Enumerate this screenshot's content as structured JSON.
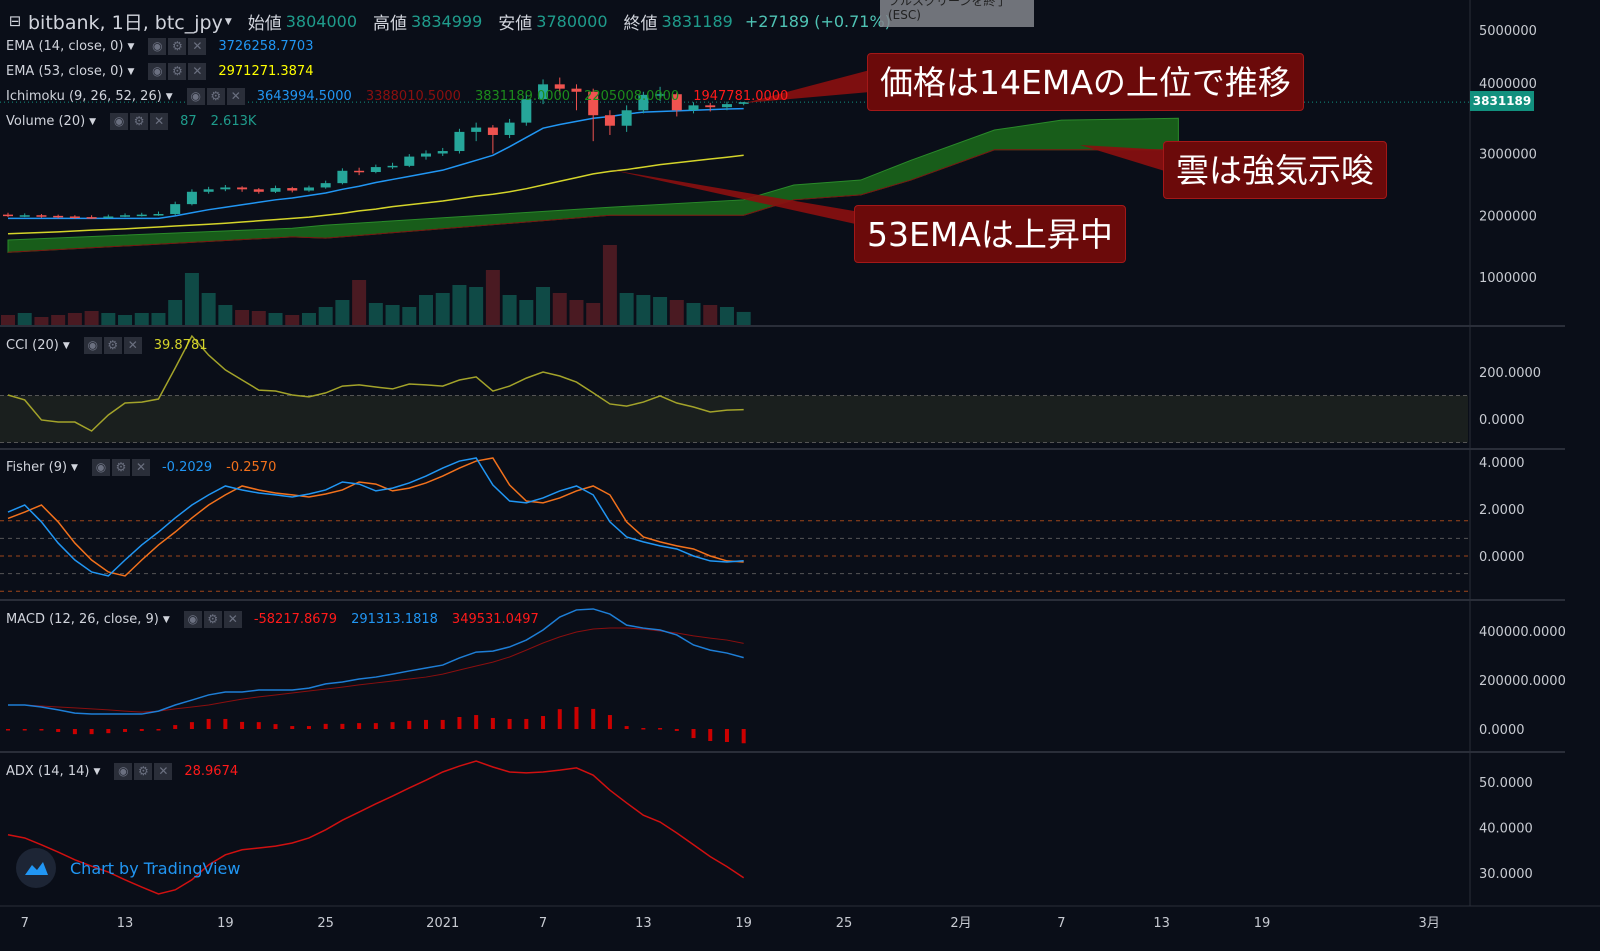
{
  "header": {
    "symbol": "bitbank, 1日, btc_jpy",
    "open_label": "始値",
    "open": "3804000",
    "high_label": "高値",
    "high": "3834999",
    "low_label": "安値",
    "low": "3780000",
    "close_label": "終値",
    "close": "3831189",
    "change": "+27189 (+0.71%)"
  },
  "tooltip": {
    "line1": "フルスクリーンを終了",
    "line2": "(ESC)"
  },
  "legends": {
    "ema14": {
      "name": "EMA (14, close, 0)",
      "value": "3726258.7703"
    },
    "ema53": {
      "name": "EMA (53, close, 0)",
      "value": "2971271.3874"
    },
    "ichimoku": {
      "name": "Ichimoku (9, 26, 52, 26)",
      "v1": "3643994.5000",
      "v2": "3388010.5000",
      "v3": "3831189.0000",
      "v4": "2205008.0000",
      "v5": "1947781.0000"
    },
    "volume": {
      "name": "Volume (20)",
      "v1": "87",
      "v2": "2.613K"
    },
    "cci": {
      "name": "CCI (20)",
      "value": "39.8781"
    },
    "fisher": {
      "name": "Fisher (9)",
      "v1": "-0.2029",
      "v2": "-0.2570"
    },
    "macd": {
      "name": "MACD (12, 26, close, 9)",
      "v1": "-58217.8679",
      "v2": "291313.1818",
      "v3": "349531.0497"
    },
    "adx": {
      "name": "ADX (14, 14)",
      "value": "28.9674"
    }
  },
  "price_tag": "3831189",
  "annotations": [
    {
      "text": "価格は14EMAの上位で推移"
    },
    {
      "text": "雲は強気示唆"
    },
    {
      "text": "53EMAは上昇中"
    }
  ],
  "branding": {
    "text": "Chart by TradingView"
  },
  "colors": {
    "up": "#26a69a",
    "down": "#ef5350",
    "ema14": "#2196f3",
    "ema53": "#d4d42a",
    "cloud": "#1b6b1b",
    "cci": "#a3a32a",
    "fisher": "#2196f3",
    "trigger": "#f2711c",
    "macd": "#1e7ed6",
    "signal": "#8b0f0f",
    "hist": "#cc0000",
    "adx": "#d01010",
    "background": "#0a0e18"
  },
  "chart_data": [
    {
      "type": "candlestick",
      "first_date": "2020-12-06",
      "interval": "1日",
      "ylim": [
        0,
        5000000
      ],
      "yticks": [
        "5000000",
        "4000000",
        "3000000",
        "2000000",
        "1000000"
      ],
      "xticks": [
        {
          "date": "2020-12-07",
          "label": "7"
        },
        {
          "date": "2020-12-13",
          "label": "13"
        },
        {
          "date": "2020-12-19",
          "label": "19"
        },
        {
          "date": "2020-12-25",
          "label": "25"
        },
        {
          "date": "2021-01-01",
          "label": "2021"
        },
        {
          "date": "2021-01-07",
          "label": "7"
        },
        {
          "date": "2021-01-13",
          "label": "13"
        },
        {
          "date": "2021-01-19",
          "label": "19"
        },
        {
          "date": "2021-01-25",
          "label": "25"
        },
        {
          "date": "2021-02-01",
          "label": "2月"
        },
        {
          "date": "2021-02-07",
          "label": "7"
        },
        {
          "date": "2021-02-13",
          "label": "13"
        },
        {
          "date": "2021-02-19",
          "label": "19"
        },
        {
          "date": "2021-03-01",
          "label": "3月"
        }
      ],
      "open": [
        2010000,
        2000000,
        2000000,
        1990000,
        1980000,
        1970000,
        1960000,
        1980000,
        2000000,
        2010000,
        2020000,
        2180000,
        2380000,
        2420000,
        2450000,
        2420000,
        2380000,
        2440000,
        2400000,
        2450000,
        2520000,
        2720000,
        2700000,
        2780000,
        2800000,
        2950000,
        3000000,
        3040000,
        3350000,
        3420000,
        3300000,
        3500000,
        3880000,
        4120000,
        4050000,
        4000000,
        3620000,
        3450000,
        3700000,
        3950000,
        3960000,
        3700000,
        3780000,
        3750000,
        3804000
      ],
      "high": [
        2040000,
        2030000,
        2020000,
        2010000,
        2000000,
        2000000,
        2010000,
        2030000,
        2040000,
        2060000,
        2220000,
        2420000,
        2460000,
        2490000,
        2470000,
        2440000,
        2480000,
        2460000,
        2480000,
        2560000,
        2760000,
        2770000,
        2820000,
        2850000,
        2990000,
        3050000,
        3090000,
        3400000,
        3500000,
        3460000,
        3560000,
        3960000,
        4200000,
        4230000,
        4120000,
        4050000,
        3700000,
        3780000,
        4000000,
        4080000,
        3990000,
        3830000,
        3820000,
        3840000,
        3834999
      ],
      "low": [
        1970000,
        1970000,
        1960000,
        1950000,
        1940000,
        1940000,
        1950000,
        1970000,
        1980000,
        1990000,
        2000000,
        2160000,
        2350000,
        2390000,
        2380000,
        2350000,
        2360000,
        2370000,
        2380000,
        2430000,
        2500000,
        2650000,
        2680000,
        2750000,
        2780000,
        2900000,
        2960000,
        3000000,
        3200000,
        3000000,
        3250000,
        3450000,
        3800000,
        3950000,
        3700000,
        3200000,
        3300000,
        3350000,
        3650000,
        3850000,
        3600000,
        3650000,
        3680000,
        3700000,
        3780000
      ],
      "close": [
        2000000,
        2000000,
        1990000,
        1980000,
        1970000,
        1960000,
        1980000,
        2000000,
        2010000,
        2020000,
        2180000,
        2380000,
        2420000,
        2450000,
        2420000,
        2380000,
        2440000,
        2400000,
        2450000,
        2520000,
        2720000,
        2700000,
        2780000,
        2800000,
        2950000,
        3000000,
        3040000,
        3350000,
        3420000,
        3300000,
        3500000,
        3880000,
        4120000,
        4050000,
        4000000,
        3620000,
        3450000,
        3700000,
        3950000,
        3960000,
        3700000,
        3780000,
        3750000,
        3800000,
        3831189
      ],
      "ema14": [
        1950000,
        1950000,
        1950000,
        1950000,
        1950000,
        1950000,
        1950000,
        1950000,
        1950000,
        1950000,
        1990000,
        2040000,
        2090000,
        2130000,
        2170000,
        2210000,
        2250000,
        2280000,
        2320000,
        2360000,
        2420000,
        2470000,
        2530000,
        2580000,
        2630000,
        2680000,
        2730000,
        2810000,
        2890000,
        2970000,
        3110000,
        3260000,
        3410000,
        3470000,
        3520000,
        3570000,
        3600000,
        3640000,
        3670000,
        3680000,
        3690000,
        3700000,
        3710000,
        3720000,
        3726258
      ],
      "ema53": [
        1700000,
        1710000,
        1720000,
        1730000,
        1745000,
        1760000,
        1770000,
        1780000,
        1795000,
        1810000,
        1825000,
        1840000,
        1855000,
        1870000,
        1890000,
        1910000,
        1930000,
        1950000,
        1970000,
        2000000,
        2030000,
        2070000,
        2100000,
        2140000,
        2170000,
        2200000,
        2230000,
        2270000,
        2310000,
        2340000,
        2380000,
        2430000,
        2490000,
        2550000,
        2610000,
        2670000,
        2710000,
        2740000,
        2780000,
        2820000,
        2850000,
        2880000,
        2910000,
        2940000,
        2971271
      ],
      "ichimoku_cloud": [
        [
          "2020-12-06",
          1600000,
          1400000
        ],
        [
          "2020-12-23",
          1790000,
          1650000
        ],
        [
          "2020-12-25",
          1840000,
          1630000
        ],
        [
          "2021-01-11",
          2130000,
          2000000
        ],
        [
          "2021-01-19",
          2250000,
          2000000
        ],
        [
          "2021-01-22",
          2490000,
          2250000
        ],
        [
          "2021-01-26",
          2570000,
          2330000
        ],
        [
          "2021-01-29",
          2890000,
          2570000
        ],
        [
          "2021-02-03",
          3380000,
          3060000
        ],
        [
          "2021-02-07",
          3540000,
          3060000
        ],
        [
          "2021-02-14",
          3570000,
          3060000
        ]
      ],
      "volume": [
        2000,
        2400,
        1600,
        2000,
        2400,
        2800,
        2400,
        2000,
        2400,
        2400,
        5000,
        10400,
        6400,
        4000,
        3000,
        2800,
        2400,
        2000,
        2400,
        3600,
        5000,
        9000,
        4400,
        4000,
        3600,
        6000,
        6400,
        8000,
        7600,
        11000,
        6000,
        5000,
        7600,
        6400,
        5000,
        4400,
        16000,
        6400,
        6000,
        5600,
        5000,
        4400,
        4000,
        3600,
        2613
      ]
    },
    {
      "type": "line",
      "name": "CCI (20)",
      "yticks": [
        "200.0000",
        "0.0000"
      ],
      "bands": [
        100,
        -100
      ],
      "values": [
        102,
        81,
        -4,
        -13,
        -13,
        -51,
        17,
        68,
        72,
        85,
        217,
        353,
        272,
        209,
        166,
        123,
        119,
        102,
        94,
        111,
        140,
        145,
        136,
        128,
        149,
        145,
        140,
        166,
        179,
        119,
        140,
        174,
        200,
        183,
        157,
        111,
        64,
        55,
        72,
        98,
        68,
        51,
        30,
        38,
        39.8781
      ]
    },
    {
      "type": "line",
      "name": "Fisher (9)",
      "yticks": [
        "4.0000",
        "2.0000",
        "0.0000"
      ],
      "levels": [
        1.5,
        0.75,
        0,
        -0.75,
        -1.5
      ],
      "fisher": [
        1.87,
        2.17,
        1.45,
        0.55,
        -0.17,
        -0.68,
        -0.85,
        -0.17,
        0.47,
        1.02,
        1.62,
        2.17,
        2.6,
        2.98,
        2.81,
        2.68,
        2.6,
        2.51,
        2.64,
        2.81,
        3.15,
        3.06,
        2.77,
        2.89,
        3.11,
        3.4,
        3.74,
        4.04,
        4.17,
        3.02,
        2.34,
        2.26,
        2.47,
        2.77,
        2.98,
        2.6,
        1.45,
        0.81,
        0.6,
        0.43,
        0.3,
        0.0,
        -0.21,
        -0.257,
        -0.2029
      ],
      "trigger": [
        1.6,
        1.87,
        2.17,
        1.45,
        0.55,
        -0.17,
        -0.68,
        -0.85,
        -0.17,
        0.47,
        1.02,
        1.62,
        2.17,
        2.6,
        2.98,
        2.81,
        2.68,
        2.6,
        2.51,
        2.64,
        2.81,
        3.15,
        3.06,
        2.77,
        2.89,
        3.11,
        3.4,
        3.74,
        4.04,
        4.17,
        3.02,
        2.34,
        2.26,
        2.47,
        2.77,
        2.98,
        2.6,
        1.45,
        0.81,
        0.6,
        0.43,
        0.3,
        0.0,
        -0.21,
        -0.257
      ]
    },
    {
      "type": "line",
      "name": "MACD (12, 26, close, 9)",
      "yticks": [
        "400000.0000",
        "200000.0000",
        "0.0000"
      ],
      "macd": [
        98000,
        98000,
        90000,
        78000,
        65000,
        61000,
        61000,
        61000,
        61000,
        73000,
        98000,
        118000,
        139000,
        151000,
        151000,
        159000,
        159000,
        159000,
        167000,
        184000,
        192000,
        204000,
        212000,
        224000,
        237000,
        249000,
        261000,
        290000,
        314000,
        318000,
        335000,
        363000,
        404000,
        457000,
        486000,
        490000,
        469000,
        424000,
        412000,
        404000,
        384000,
        343000,
        322000,
        310000,
        291313
      ],
      "signal": [
        98000,
        98000,
        94000,
        90000,
        86000,
        82000,
        78000,
        73000,
        69000,
        73000,
        82000,
        90000,
        98000,
        110000,
        122000,
        131000,
        139000,
        147000,
        155000,
        163000,
        171000,
        180000,
        188000,
        196000,
        204000,
        212000,
        224000,
        241000,
        257000,
        273000,
        294000,
        322000,
        351000,
        376000,
        396000,
        408000,
        412000,
        412000,
        408000,
        400000,
        392000,
        380000,
        371000,
        363000,
        349531
      ]
    },
    {
      "type": "line",
      "name": "ADX (14, 14)",
      "yticks": [
        "50.0000",
        "40.0000",
        "30.0000"
      ],
      "values": [
        38.4,
        37.7,
        36.2,
        34.6,
        32.9,
        31.5,
        30.2,
        28.5,
        26.9,
        25.4,
        26.3,
        28.5,
        31.8,
        34.0,
        35.1,
        35.5,
        35.9,
        36.6,
        37.7,
        39.5,
        41.6,
        43.4,
        45.2,
        46.9,
        48.7,
        50.4,
        52.2,
        53.5,
        54.6,
        53.3,
        52.2,
        52.0,
        52.2,
        52.6,
        53.1,
        51.5,
        48.2,
        45.4,
        42.7,
        41.2,
        38.8,
        36.2,
        33.6,
        31.4,
        28.9674
      ]
    }
  ]
}
